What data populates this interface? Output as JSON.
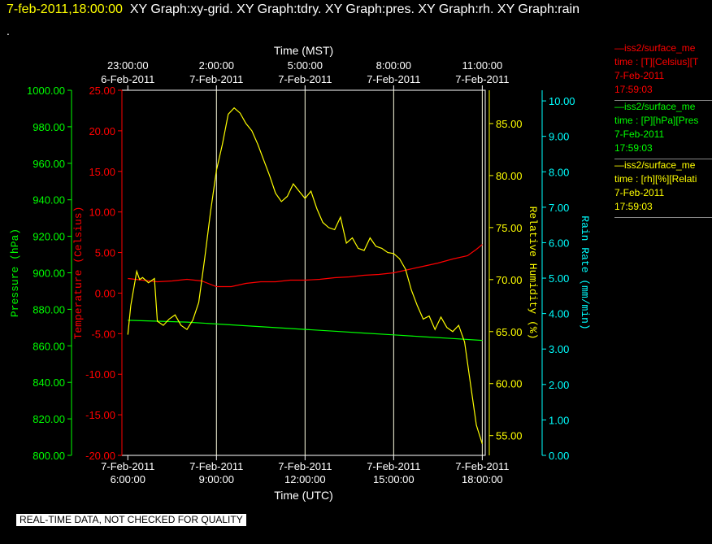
{
  "header": {
    "timestamp": "7-feb-2011,18:00:00",
    "graphs": "XY Graph:xy-grid.  XY Graph:tdry.  XY Graph:pres.  XY Graph:rh.  XY Graph:rain",
    "second_line": "."
  },
  "legend": [
    {
      "color": "#ff0000",
      "line": "—iss2/surface_me",
      "field": "time : [T][Celsius][T",
      "date": "7-Feb-2011",
      "time": "17:59:03"
    },
    {
      "color": "#00ff00",
      "line": "—iss2/surface_me",
      "field": "time : [P][hPa][Pres",
      "date": "7-Feb-2011",
      "time": "17:59:03"
    },
    {
      "color": "#ffff00",
      "line": "—iss2/surface_me",
      "field": "time : [rh][%][Relati",
      "date": "7-Feb-2011",
      "time": "17:59:03"
    }
  ],
  "footer": "REAL-TIME DATA, NOT CHECKED FOR QUALITY",
  "chart_data": {
    "type": "line",
    "title": "",
    "x_top_label": "Time (MST)",
    "x_bottom_label": "Time (UTC)",
    "x_range_hours_utc": [
      5.8,
      18.1
    ],
    "x_ticks_bottom": [
      {
        "h": 6,
        "date": "7-Feb-2011",
        "time": "6:00:00"
      },
      {
        "h": 9,
        "date": "7-Feb-2011",
        "time": "9:00:00"
      },
      {
        "h": 12,
        "date": "7-Feb-2011",
        "time": "12:00:00"
      },
      {
        "h": 15,
        "date": "7-Feb-2011",
        "time": "15:00:00"
      },
      {
        "h": 18,
        "date": "7-Feb-2011",
        "time": "18:00:00"
      }
    ],
    "x_ticks_top": [
      {
        "h": 6,
        "time": "23:00:00",
        "date": "6-Feb-2011"
      },
      {
        "h": 9,
        "time": "2:00:00",
        "date": "7-Feb-2011"
      },
      {
        "h": 12,
        "time": "5:00:00",
        "date": "7-Feb-2011"
      },
      {
        "h": 15,
        "time": "8:00:00",
        "date": "7-Feb-2011"
      },
      {
        "h": 18,
        "time": "11:00:00",
        "date": "7-Feb-2011"
      }
    ],
    "grid_vertical": [
      9,
      12,
      15,
      18
    ],
    "axes": {
      "pressure": {
        "label": "Pressure (hPa)",
        "color": "#00ff00",
        "range": [
          800,
          1000
        ],
        "ticks": [
          "800.00",
          "820.00",
          "840.00",
          "860.00",
          "880.00",
          "900.00",
          "920.00",
          "940.00",
          "960.00",
          "980.00",
          "1000.00"
        ]
      },
      "temperature": {
        "label": "Temperature (Celsius)",
        "color": "#ff0000",
        "range": [
          -20,
          25
        ],
        "ticks": [
          "-20.00",
          "-15.00",
          "-10.00",
          "-5.00",
          "0.00",
          "5.00",
          "10.00",
          "15.00",
          "20.00",
          "25.00"
        ]
      },
      "rh": {
        "label": "Relative Humidity (%)",
        "color": "#ffff00",
        "range": [
          53.1,
          88.2
        ],
        "ticks": [
          "55.00",
          "60.00",
          "65.00",
          "70.00",
          "75.00",
          "80.00",
          "85.00"
        ]
      },
      "rain": {
        "label": "Rain Rate (mm/min)",
        "color": "#00ffff",
        "range": [
          0,
          10.3
        ],
        "ticks": [
          "0.00",
          "1.00",
          "2.00",
          "3.00",
          "4.00",
          "5.00",
          "6.00",
          "7.00",
          "8.00",
          "9.00",
          "10.00"
        ]
      }
    },
    "series": [
      {
        "axis": "temperature",
        "color": "#ff0000",
        "x": [
          6.0,
          6.5,
          7.0,
          7.5,
          8.0,
          8.5,
          9.0,
          9.5,
          10.0,
          10.5,
          11.0,
          11.5,
          12.0,
          12.5,
          13.0,
          13.5,
          14.0,
          14.5,
          15.0,
          15.5,
          16.0,
          16.5,
          17.0,
          17.5,
          17.8,
          18.0
        ],
        "y": [
          1.8,
          1.6,
          1.4,
          1.5,
          1.7,
          1.5,
          0.8,
          0.8,
          1.2,
          1.4,
          1.4,
          1.6,
          1.6,
          1.7,
          1.9,
          2.0,
          2.2,
          2.3,
          2.5,
          2.9,
          3.3,
          3.7,
          4.2,
          4.6,
          5.4,
          6.0
        ]
      },
      {
        "axis": "pressure",
        "color": "#00ff00",
        "x": [
          6.0,
          7.0,
          8.0,
          9.0,
          10.0,
          11.0,
          12.0,
          13.0,
          14.0,
          15.0,
          16.0,
          17.0,
          18.0
        ],
        "y": [
          874,
          873.5,
          873,
          872,
          871,
          870,
          869,
          868,
          867,
          866,
          865,
          864,
          863
        ]
      },
      {
        "axis": "rh",
        "color": "#ffff00",
        "x": [
          6.0,
          6.1,
          6.3,
          6.4,
          6.5,
          6.7,
          6.9,
          7.0,
          7.2,
          7.4,
          7.6,
          7.8,
          8.0,
          8.2,
          8.4,
          8.6,
          8.8,
          9.0,
          9.2,
          9.4,
          9.6,
          9.8,
          10.0,
          10.2,
          10.4,
          10.6,
          10.8,
          11.0,
          11.2,
          11.4,
          11.6,
          11.8,
          12.0,
          12.2,
          12.4,
          12.6,
          12.8,
          13.0,
          13.2,
          13.4,
          13.6,
          13.8,
          14.0,
          14.2,
          14.4,
          14.6,
          14.8,
          15.0,
          15.2,
          15.4,
          15.6,
          15.8,
          16.0,
          16.2,
          16.4,
          16.6,
          16.8,
          17.0,
          17.2,
          17.4,
          17.6,
          17.8,
          18.0
        ],
        "y": [
          64.7,
          67.5,
          70.8,
          70.0,
          70.2,
          69.7,
          70.1,
          66.0,
          65.6,
          66.2,
          66.6,
          65.6,
          65.2,
          66.1,
          67.8,
          72.0,
          76.5,
          80.5,
          83.0,
          85.9,
          86.5,
          86.0,
          85.0,
          84.3,
          83.0,
          81.5,
          80.0,
          78.3,
          77.5,
          78.0,
          79.2,
          78.5,
          77.8,
          78.5,
          76.8,
          75.5,
          75.0,
          74.8,
          76.0,
          73.5,
          74.0,
          73.0,
          72.8,
          74.0,
          73.2,
          73.0,
          72.6,
          72.5,
          72.0,
          71.0,
          69.0,
          67.5,
          66.2,
          66.5,
          65.2,
          66.4,
          65.4,
          65.0,
          65.6,
          64.0,
          60.0,
          56.0,
          54.2
        ]
      }
    ]
  }
}
